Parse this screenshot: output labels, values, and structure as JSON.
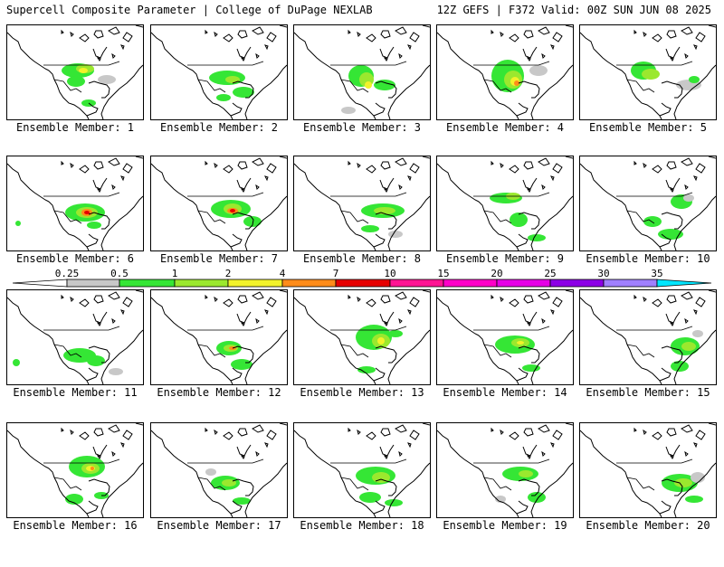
{
  "header": {
    "left": "Supercell Composite Parameter | College of DuPage NEXLAB",
    "right": "12Z GEFS | F372 Valid: 00Z SUN JUN 08 2025"
  },
  "colors": {
    "scale": [
      "#ffffff",
      "#c8c8c8",
      "#35e635",
      "#9be82e",
      "#f2f22a",
      "#ff8c1a",
      "#e60000",
      "#ff1493",
      "#ff00c8",
      "#e600e6",
      "#8c00e6",
      "#a080ff",
      "#00e6ff"
    ],
    "coast": "#000000",
    "border": "#000000"
  },
  "colorbar": {
    "ticks": [
      "0.25",
      "0.5",
      "1",
      "2",
      "4",
      "7",
      "10",
      "15",
      "20",
      "25",
      "30",
      "35"
    ]
  },
  "members": [
    {
      "label": "Ensemble Member: 1"
    },
    {
      "label": "Ensemble Member: 2"
    },
    {
      "label": "Ensemble Member: 3"
    },
    {
      "label": "Ensemble Member: 4"
    },
    {
      "label": "Ensemble Member: 5"
    },
    {
      "label": "Ensemble Member: 6"
    },
    {
      "label": "Ensemble Member: 7"
    },
    {
      "label": "Ensemble Member: 8"
    },
    {
      "label": "Ensemble Member: 9"
    },
    {
      "label": "Ensemble Member: 10"
    },
    {
      "label": "Ensemble Member: 11"
    },
    {
      "label": "Ensemble Member: 12"
    },
    {
      "label": "Ensemble Member: 13"
    },
    {
      "label": "Ensemble Member: 14"
    },
    {
      "label": "Ensemble Member: 15"
    },
    {
      "label": "Ensemble Member: 16"
    },
    {
      "label": "Ensemble Member: 17"
    },
    {
      "label": "Ensemble Member: 18"
    },
    {
      "label": "Ensemble Member: 19"
    },
    {
      "label": "Ensemble Member: 20"
    }
  ]
}
